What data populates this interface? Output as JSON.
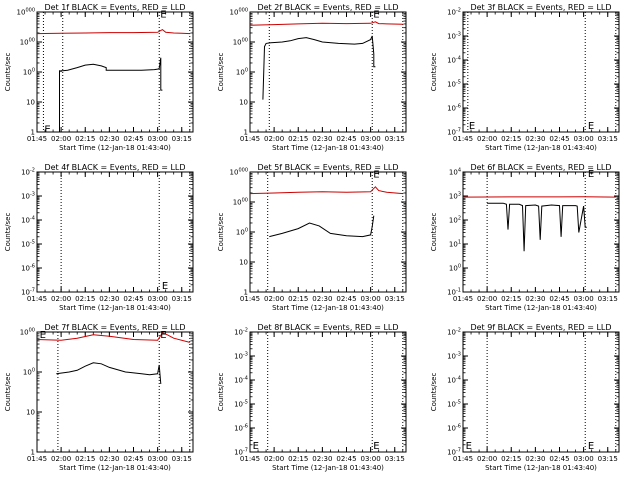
{
  "page": {
    "title": ""
  },
  "colors": {
    "events": "#000000",
    "lld": "#cc0000",
    "axes": "#000000",
    "background": "#ffffff"
  },
  "chart_data": [
    {
      "type": "line",
      "title": "Det 1f BLACK = Events, RED = LLD",
      "ylabel": "Counts/sec",
      "xlabel": "Start Time (12-Jan-18 01:43:40)",
      "yscale": "log",
      "ylim": [
        1,
        10000
      ],
      "ytick_labels": [
        "1",
        "10",
        "100",
        "1000",
        "10000"
      ],
      "xlim": [
        "01:45",
        "03:22"
      ],
      "xtick_labels": [
        "01:45",
        "02:00",
        "02:15",
        "02:30",
        "02:45",
        "03:00",
        "03:15"
      ],
      "vlines": [
        "01:49",
        "02:01",
        "03:01",
        "03:20"
      ],
      "markers": [
        {
          "x": "01:49",
          "y": 1.3,
          "label": "E"
        },
        {
          "x": "03:01",
          "y": 9000,
          "label": "E"
        }
      ],
      "series": [
        {
          "name": "Events",
          "color": "#000000",
          "x": [
            "01:59",
            "01:59",
            "02:00",
            "02:00",
            "02:01",
            "02:04",
            "02:10",
            "02:15",
            "02:20",
            "02:25",
            "02:28",
            "02:28",
            "02:40",
            "02:50",
            "02:58",
            "03:00",
            "03:01",
            "03:02",
            "03:02",
            "03:03"
          ],
          "y": [
            1,
            110,
            105,
            110,
            110,
            115,
            140,
            170,
            180,
            160,
            140,
            115,
            115,
            115,
            120,
            125,
            130,
            300,
            25,
            25
          ]
        },
        {
          "name": "LLD",
          "color": "#cc0000",
          "x": [
            "01:45",
            "02:00",
            "02:15",
            "02:30",
            "02:45",
            "03:00",
            "03:03",
            "03:05",
            "03:10",
            "03:15",
            "03:20"
          ],
          "y": [
            1900,
            1950,
            2000,
            2050,
            2050,
            2100,
            2600,
            2100,
            2000,
            1950,
            1900
          ]
        }
      ]
    },
    {
      "type": "line",
      "title": "Det 2f BLACK = Events, RED = LLD",
      "ylabel": "Counts/sec",
      "xlabel": "Start Time (12-Jan-18 01:43:40)",
      "yscale": "log",
      "ylim": [
        1,
        10000
      ],
      "ytick_labels": [
        "1",
        "10",
        "100",
        "1000",
        "10000"
      ],
      "xlim": [
        "01:45",
        "03:22"
      ],
      "xtick_labels": [
        "01:45",
        "02:00",
        "02:15",
        "02:30",
        "02:45",
        "03:00",
        "03:15"
      ],
      "vlines": [
        "01:57",
        "03:01",
        "03:20"
      ],
      "markers": [
        {
          "x": "03:01",
          "y": 9000,
          "label": "E"
        }
      ],
      "series": [
        {
          "name": "Events",
          "color": "#000000",
          "x": [
            "01:53",
            "01:54",
            "01:55",
            "01:58",
            "02:05",
            "02:10",
            "02:15",
            "02:20",
            "02:25",
            "02:30",
            "02:40",
            "02:50",
            "02:55",
            "03:00",
            "03:01",
            "03:02",
            "03:02",
            "03:03"
          ],
          "y": [
            12,
            700,
            900,
            950,
            1000,
            1100,
            1300,
            1400,
            1200,
            1000,
            900,
            850,
            900,
            1200,
            1600,
            400,
            150,
            150
          ]
        },
        {
          "name": "LLD",
          "color": "#cc0000",
          "x": [
            "01:45",
            "02:00",
            "02:15",
            "02:30",
            "02:45",
            "03:00",
            "03:03",
            "03:05",
            "03:10",
            "03:20"
          ],
          "y": [
            3600,
            3800,
            4000,
            4200,
            4100,
            4200,
            4700,
            4100,
            4000,
            3900
          ]
        }
      ]
    },
    {
      "type": "line",
      "title": "Det 3f BLACK = Events, RED = LLD",
      "ylabel": "Counts/sec",
      "xlabel": "Start Time (12-Jan-18 01:43:40)",
      "yscale": "log",
      "ylim": [
        1e-07,
        0.01
      ],
      "ytick_labels": [
        "10-7",
        "10-6",
        "10-5",
        "10-4",
        "10-3",
        "10-2"
      ],
      "xlim": [
        "01:45",
        "03:22"
      ],
      "xtick_labels": [
        "01:45",
        "02:00",
        "02:15",
        "02:30",
        "02:45",
        "03:00",
        "03:15"
      ],
      "vlines": [
        "01:48",
        "03:01",
        "03:20"
      ],
      "markers": [
        {
          "x": "01:48",
          "y": 2e-07,
          "label": "E"
        },
        {
          "x": "03:02",
          "y": 2e-07,
          "label": "E"
        }
      ],
      "series": []
    },
    {
      "type": "line",
      "title": "Det 4f BLACK = Events, RED = LLD",
      "ylabel": "Counts/sec",
      "xlabel": "Start Time (12-Jan-18 01:43:40)",
      "yscale": "log",
      "ylim": [
        1e-07,
        0.01
      ],
      "ytick_labels": [
        "10-7",
        "10-6",
        "10-5",
        "10-4",
        "10-3",
        "10-2"
      ],
      "xlim": [
        "01:45",
        "03:22"
      ],
      "xtick_labels": [
        "01:45",
        "02:00",
        "02:15",
        "02:30",
        "02:45",
        "03:00",
        "03:15"
      ],
      "vlines": [
        "02:00",
        "03:01",
        "03:20"
      ],
      "markers": [
        {
          "x": "03:02",
          "y": 2e-07,
          "label": "E"
        }
      ],
      "series": []
    },
    {
      "type": "line",
      "title": "Det 5f BLACK = Events, RED = LLD",
      "ylabel": "Counts/sec",
      "xlabel": "Start Time (12-Jan-18 01:43:40)",
      "yscale": "log",
      "ylim": [
        1,
        10000
      ],
      "ytick_labels": [
        "1",
        "10",
        "100",
        "1000",
        "10000"
      ],
      "xlim": [
        "01:45",
        "03:22"
      ],
      "xtick_labels": [
        "01:45",
        "02:00",
        "02:15",
        "02:30",
        "02:45",
        "03:00",
        "03:15"
      ],
      "vlines": [
        "01:56",
        "03:01",
        "03:20"
      ],
      "markers": [
        {
          "x": "03:01",
          "y": 9000,
          "label": "E"
        }
      ],
      "series": [
        {
          "name": "Events",
          "color": "#000000",
          "x": [
            "01:57",
            "02:05",
            "02:15",
            "02:22",
            "02:28",
            "02:35",
            "02:45",
            "02:55",
            "03:00",
            "03:01",
            "03:02"
          ],
          "y": [
            70,
            90,
            130,
            200,
            160,
            90,
            75,
            70,
            80,
            150,
            350
          ]
        },
        {
          "name": "LLD",
          "color": "#cc0000",
          "x": [
            "01:45",
            "02:00",
            "02:15",
            "02:30",
            "02:45",
            "03:00",
            "03:03",
            "03:05",
            "03:10",
            "03:20"
          ],
          "y": [
            1900,
            2000,
            2100,
            2200,
            2100,
            2200,
            3200,
            2400,
            2100,
            1900
          ]
        }
      ]
    },
    {
      "type": "line",
      "title": "Det 6f BLACK = Events, RED = LLD",
      "ylabel": "Counts/sec",
      "xlabel": "Start Time (12-Jan-18 01:43:40)",
      "yscale": "log",
      "ylim": [
        0.1,
        10000.0
      ],
      "ytick_labels": [
        "10-1",
        "100",
        "101",
        "102",
        "103",
        "104"
      ],
      "xlim": [
        "01:45",
        "03:22"
      ],
      "xtick_labels": [
        "01:45",
        "02:00",
        "02:15",
        "02:30",
        "02:45",
        "03:00",
        "03:15"
      ],
      "vlines": [
        "02:00",
        "03:01",
        "03:20"
      ],
      "markers": [
        {
          "x": "03:02",
          "y": 9000,
          "label": "E"
        }
      ],
      "series": [
        {
          "name": "Events",
          "color": "#000000",
          "x": [
            "02:00",
            "02:10",
            "02:12",
            "02:13",
            "02:14",
            "02:20",
            "02:22",
            "02:23",
            "02:24",
            "02:30",
            "02:32",
            "02:33",
            "02:34",
            "02:40",
            "02:45",
            "02:46",
            "02:47",
            "02:55",
            "02:56",
            "02:57",
            "03:00",
            "03:01",
            "03:02"
          ],
          "y": [
            500,
            500,
            450,
            40,
            450,
            450,
            400,
            5,
            400,
            420,
            380,
            15,
            380,
            420,
            400,
            20,
            400,
            400,
            380,
            30,
            380,
            50,
            50
          ]
        },
        {
          "name": "LLD",
          "color": "#cc0000",
          "x": [
            "01:45",
            "02:00",
            "02:15",
            "02:30",
            "02:45",
            "03:00",
            "03:20"
          ],
          "y": [
            900,
            910,
            920,
            920,
            920,
            930,
            900
          ]
        }
      ]
    },
    {
      "type": "line",
      "title": "Det 7f BLACK = Events, RED = LLD",
      "ylabel": "Counts/sec",
      "xlabel": "Start Time (12-Jan-18 01:43:40)",
      "yscale": "log",
      "ylim": [
        1,
        1000
      ],
      "ytick_labels": [
        "1",
        "10",
        "100",
        "1000"
      ],
      "xlim": [
        "01:45",
        "03:22"
      ],
      "xtick_labels": [
        "01:45",
        "02:00",
        "02:15",
        "02:30",
        "02:45",
        "03:00",
        "03:15"
      ],
      "vlines": [
        "01:58",
        "03:01",
        "03:20"
      ],
      "markers": [
        {
          "x": "01:46",
          "y": 900,
          "label": "E"
        },
        {
          "x": "03:01",
          "y": 900,
          "label": "E"
        }
      ],
      "series": [
        {
          "name": "Events",
          "color": "#000000",
          "x": [
            "01:57",
            "02:05",
            "02:10",
            "02:15",
            "02:20",
            "02:25",
            "02:30",
            "02:40",
            "02:50",
            "02:55",
            "03:00",
            "03:01",
            "03:02"
          ],
          "y": [
            90,
            100,
            110,
            140,
            170,
            160,
            130,
            100,
            90,
            85,
            90,
            150,
            50
          ]
        },
        {
          "name": "LLD",
          "color": "#cc0000",
          "x": [
            "01:45",
            "02:00",
            "02:10",
            "02:20",
            "02:30",
            "02:45",
            "03:00",
            "03:03",
            "03:06",
            "03:10",
            "03:20"
          ],
          "y": [
            650,
            620,
            700,
            850,
            780,
            650,
            620,
            950,
            850,
            700,
            550
          ]
        }
      ]
    },
    {
      "type": "line",
      "title": "Det 8f BLACK = Events, RED = LLD",
      "ylabel": "Counts/sec",
      "xlabel": "Start Time (12-Jan-18 01:43:40)",
      "yscale": "log",
      "ylim": [
        1e-07,
        0.01
      ],
      "ytick_labels": [
        "10-7",
        "10-6",
        "10-5",
        "10-4",
        "10-3",
        "10-2"
      ],
      "xlim": [
        "01:45",
        "03:22"
      ],
      "xtick_labels": [
        "01:45",
        "02:00",
        "02:15",
        "02:30",
        "02:45",
        "03:00",
        "03:15"
      ],
      "vlines": [
        "01:56",
        "03:01",
        "03:20"
      ],
      "markers": [
        {
          "x": "01:46",
          "y": 2e-07,
          "label": "E"
        },
        {
          "x": "03:01",
          "y": 2e-07,
          "label": "E"
        }
      ],
      "series": []
    },
    {
      "type": "line",
      "title": "Det 9f BLACK = Events, RED = LLD",
      "ylabel": "Counts/sec",
      "xlabel": "Start Time (12-Jan-18 01:43:40)",
      "yscale": "log",
      "ylim": [
        1e-07,
        0.01
      ],
      "ytick_labels": [
        "10-7",
        "10-6",
        "10-5",
        "10-4",
        "10-3",
        "10-2"
      ],
      "xlim": [
        "01:45",
        "03:22"
      ],
      "xtick_labels": [
        "01:45",
        "02:00",
        "02:15",
        "02:30",
        "02:45",
        "03:00",
        "03:15"
      ],
      "vlines": [
        "02:00",
        "03:01",
        "03:20"
      ],
      "markers": [
        {
          "x": "01:46",
          "y": 2e-07,
          "label": "E"
        },
        {
          "x": "03:02",
          "y": 2e-07,
          "label": "E"
        }
      ],
      "series": []
    }
  ]
}
